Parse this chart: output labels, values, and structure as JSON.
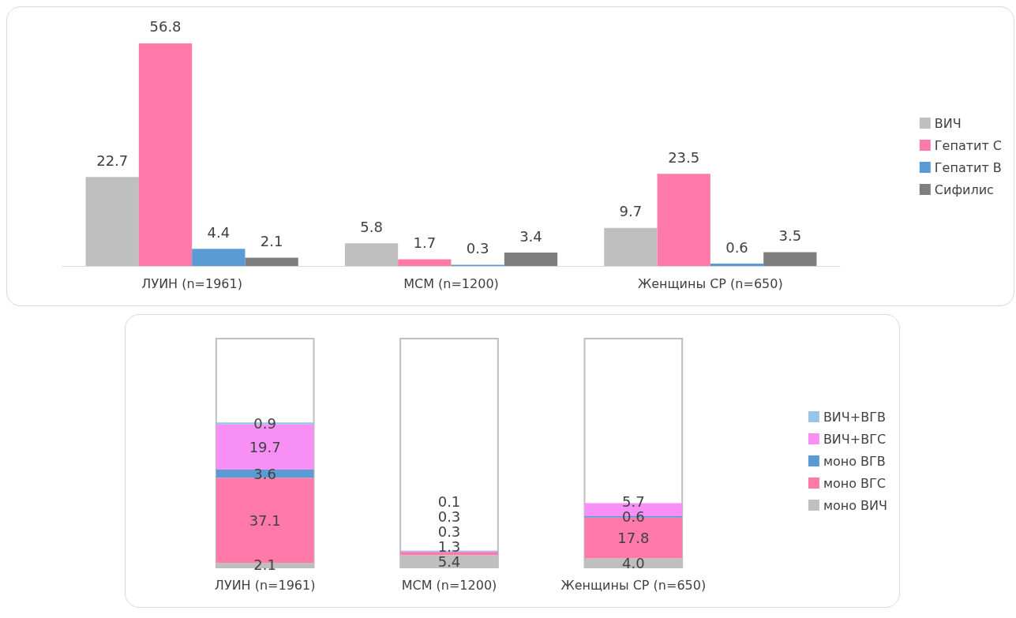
{
  "chart_data": [
    {
      "type": "bar",
      "categories": [
        "ЛУИН (n=1961)",
        "МСМ (n=1200)",
        "Женщины СР (n=650)"
      ],
      "series": [
        {
          "name": "ВИЧ",
          "color": "#bfbfbf",
          "values": [
            22.7,
            5.8,
            9.7
          ]
        },
        {
          "name": "Гепатит С",
          "color": "#ff7aa8",
          "values": [
            56.8,
            1.7,
            23.5
          ]
        },
        {
          "name": "Гепатит В",
          "color": "#5b9bd5",
          "values": [
            4.4,
            0.3,
            0.6
          ]
        },
        {
          "name": "Сифилис",
          "color": "#7f7f7f",
          "values": [
            2.1,
            3.4,
            3.5
          ]
        }
      ],
      "data_labels": true,
      "legend": "right",
      "tick_labels": "x"
    },
    {
      "type": "bar",
      "stacked": true,
      "categories": [
        "ЛУИН (n=1961)",
        "МСМ (n=1200)",
        "Женщины СР (n=650)"
      ],
      "series": [
        {
          "name": "моно ВИЧ",
          "color": "#bfbfbf",
          "values": [
            2.1,
            5.4,
            4.0
          ],
          "value_labels": [
            "2.1",
            "5.4",
            "4.0"
          ]
        },
        {
          "name": "моно ВГС",
          "color": "#ff7aa8",
          "values": [
            37.1,
            1.3,
            17.8
          ],
          "value_labels": [
            "37.1",
            "1.3",
            "17.8"
          ]
        },
        {
          "name": "моно ВГВ",
          "color": "#5b9bd5",
          "values": [
            3.6,
            0.3,
            0.6
          ],
          "value_labels": [
            "3.6",
            "0.3",
            "0.6"
          ]
        },
        {
          "name": "ВИЧ+ВГС",
          "color": "#f78ff5",
          "values": [
            19.7,
            0.3,
            5.7
          ],
          "value_labels": [
            "19.7",
            "0.3",
            "5.7"
          ]
        },
        {
          "name": "ВИЧ+ВГВ",
          "color": "#9dc3e6",
          "values": [
            0.9,
            0.1,
            null
          ],
          "value_labels": [
            "0.9",
            "0.1",
            null
          ]
        }
      ],
      "ylim": [
        0,
        100
      ],
      "legend": "right",
      "tick_labels": "x"
    }
  ]
}
